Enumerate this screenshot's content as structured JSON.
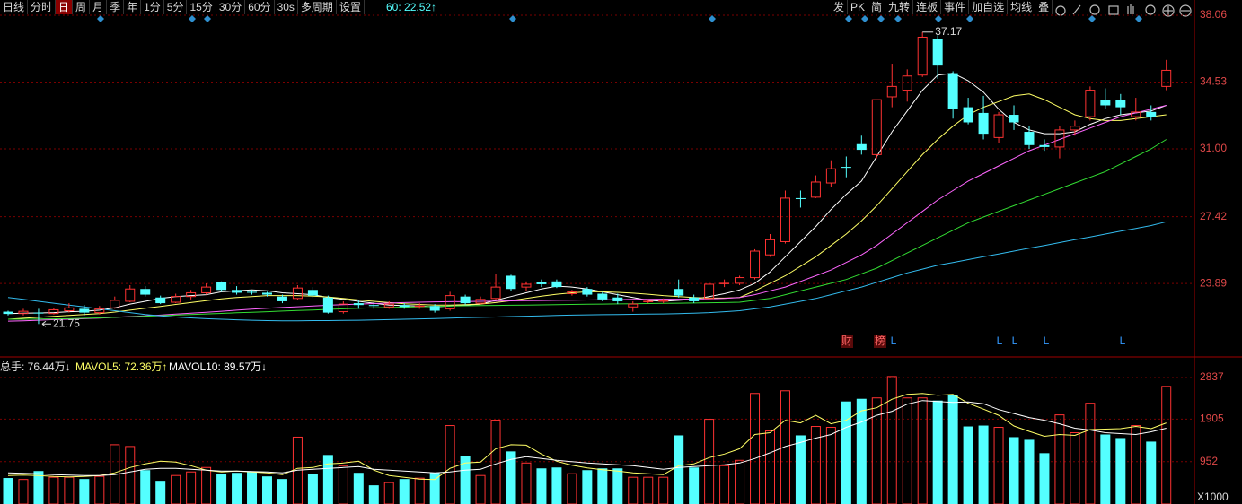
{
  "toolbar": {
    "left": [
      "日线",
      "分时",
      "日",
      "周",
      "月",
      "季",
      "年",
      "1分",
      "5分",
      "15分",
      "30分",
      "60分",
      "30s",
      "多周期",
      "设置"
    ],
    "ma_readout": "60: 22.52↑",
    "right": [
      "发",
      "PK",
      "简",
      "九转",
      "连板",
      "事件",
      "加自选",
      "均线",
      "叠"
    ]
  },
  "chart_data": [
    {
      "type": "candlestick",
      "up_color": "#ff3232",
      "down_color": "#54ffff",
      "ylim": [
        20.2,
        38.06
      ],
      "yticks": [
        38.06,
        34.53,
        {
          "value": 31,
          "label": "31.00"
        },
        27.42,
        23.89
      ],
      "grid": true,
      "high_label": "37.17",
      "low_label": "21.75",
      "events": [
        "财",
        "榜",
        "L",
        "L",
        "L",
        "L",
        "L"
      ],
      "open": [
        22.4,
        22.3,
        22.35,
        22.3,
        22.45,
        22.55,
        22.35,
        22.6,
        22.95,
        23.6,
        23.15,
        22.9,
        23.2,
        23.4,
        23.95,
        23.55,
        23.45,
        23.4,
        23.2,
        23.1,
        23.55,
        23.15,
        22.4,
        22.85,
        22.75,
        22.65,
        22.75,
        22.7,
        22.7,
        22.55,
        23.2,
        22.85,
        23.1,
        24.3,
        23.7,
        23.95,
        24.0,
        23.35,
        23.6,
        23.35,
        23.15,
        22.65,
        22.95,
        22.95,
        23.6,
        23.15,
        23.1,
        23.9,
        23.9,
        24.2,
        25.4,
        26.1,
        28.4,
        28.45,
        29.2,
        30.05,
        31.25,
        30.7,
        33.75,
        34.1,
        34.9,
        36.8,
        35.0,
        33.2,
        32.9,
        31.6,
        32.8,
        31.9,
        31.2,
        31.1,
        32.0,
        32.7,
        33.6,
        33.6,
        32.7,
        32.95,
        34.3
      ],
      "high": [
        22.45,
        22.55,
        22.55,
        22.6,
        22.85,
        22.75,
        22.7,
        23.2,
        23.8,
        23.75,
        23.25,
        23.35,
        23.55,
        23.9,
        24.0,
        23.75,
        23.55,
        23.45,
        23.3,
        23.8,
        23.7,
        23.25,
        22.95,
        23.0,
        22.9,
        22.95,
        22.85,
        22.85,
        22.8,
        23.45,
        23.3,
        23.2,
        24.4,
        24.35,
        24.0,
        24.1,
        24.1,
        23.55,
        23.7,
        23.45,
        23.35,
        22.95,
        23.05,
        23.1,
        24.1,
        23.3,
        24.0,
        24.1,
        24.3,
        25.7,
        26.5,
        28.8,
        28.8,
        29.6,
        30.4,
        30.6,
        31.7,
        33.6,
        35.5,
        35.2,
        37.17,
        37.0,
        35.1,
        33.7,
        33.8,
        32.95,
        33.3,
        32.2,
        31.5,
        32.2,
        32.5,
        34.3,
        34.2,
        33.9,
        33.7,
        33.3,
        35.7
      ],
      "low": [
        22.2,
        22.2,
        21.75,
        22.25,
        22.35,
        22.2,
        22.25,
        22.55,
        22.9,
        23.2,
        22.8,
        22.85,
        23.05,
        23.3,
        23.45,
        23.3,
        23.3,
        23.2,
        22.85,
        23.0,
        23.15,
        22.3,
        22.3,
        22.55,
        22.55,
        22.55,
        22.55,
        22.55,
        22.35,
        22.45,
        22.75,
        22.8,
        23.0,
        23.5,
        23.5,
        23.7,
        23.65,
        23.25,
        23.2,
        22.95,
        22.8,
        22.4,
        22.85,
        22.85,
        23.15,
        22.85,
        23.0,
        23.7,
        23.8,
        24.1,
        25.3,
        26.0,
        27.9,
        28.4,
        29.0,
        29.5,
        30.7,
        30.5,
        33.2,
        33.5,
        34.8,
        34.7,
        32.6,
        32.3,
        31.5,
        31.3,
        32.0,
        31.0,
        30.9,
        30.5,
        31.7,
        32.5,
        33.1,
        32.8,
        32.5,
        32.5,
        34.1
      ],
      "close": [
        22.28,
        22.42,
        22.3,
        22.5,
        22.6,
        22.35,
        22.55,
        23.0,
        23.6,
        23.3,
        22.85,
        23.2,
        23.4,
        23.7,
        23.55,
        23.4,
        23.4,
        23.3,
        22.95,
        23.65,
        23.25,
        22.35,
        22.8,
        22.75,
        22.7,
        22.8,
        22.65,
        22.7,
        22.45,
        23.25,
        22.85,
        23.05,
        23.7,
        23.6,
        23.85,
        23.85,
        23.7,
        23.45,
        23.3,
        23.05,
        22.95,
        22.8,
        22.95,
        23.0,
        23.25,
        22.95,
        23.85,
        23.9,
        24.2,
        25.6,
        26.2,
        28.4,
        28.35,
        29.25,
        29.95,
        30.0,
        30.95,
        33.6,
        34.3,
        34.85,
        36.9,
        35.4,
        33.1,
        32.4,
        31.8,
        32.8,
        32.4,
        31.2,
        31.1,
        32.0,
        32.2,
        34.1,
        33.3,
        33.2,
        32.95,
        32.7,
        35.15
      ],
      "series": [
        {
          "color": "#ffffff",
          "values": [
            22.3,
            22.32,
            22.33,
            22.35,
            22.4,
            22.42,
            22.48,
            22.6,
            22.8,
            22.95,
            23.1,
            23.2,
            23.25,
            23.3,
            23.45,
            23.5,
            23.55,
            23.5,
            23.4,
            23.35,
            23.3,
            23.15,
            23.05,
            22.95,
            22.85,
            22.75,
            22.72,
            22.7,
            22.65,
            22.7,
            22.75,
            22.8,
            23.0,
            23.2,
            23.4,
            23.6,
            23.75,
            23.7,
            23.6,
            23.45,
            23.3,
            23.15,
            23.0,
            22.95,
            23.0,
            23.05,
            23.2,
            23.35,
            23.55,
            23.9,
            24.5,
            25.3,
            26.1,
            26.9,
            27.8,
            28.6,
            29.3,
            30.6,
            31.9,
            33.0,
            34.1,
            34.9,
            35.0,
            34.6,
            34.0,
            33.1,
            32.4,
            32.0,
            31.8,
            31.8,
            31.9,
            32.3,
            32.6,
            32.8,
            32.9,
            33.0,
            33.3
          ]
        },
        {
          "color": "#ffff66",
          "values": [
            22.0,
            22.05,
            22.1,
            22.15,
            22.2,
            22.25,
            22.3,
            22.38,
            22.48,
            22.58,
            22.68,
            22.78,
            22.88,
            22.98,
            23.08,
            23.15,
            23.2,
            23.25,
            23.25,
            23.25,
            23.22,
            23.18,
            23.1,
            23.02,
            22.95,
            22.88,
            22.82,
            22.78,
            22.75,
            22.75,
            22.77,
            22.8,
            22.88,
            22.98,
            23.1,
            23.22,
            23.32,
            23.4,
            23.45,
            23.45,
            23.42,
            23.38,
            23.32,
            23.25,
            23.2,
            23.15,
            23.12,
            23.12,
            23.15,
            23.5,
            23.9,
            24.3,
            24.8,
            25.3,
            25.9,
            26.5,
            27.2,
            28.0,
            28.9,
            29.8,
            30.7,
            31.5,
            32.2,
            32.8,
            33.2,
            33.5,
            33.8,
            33.9,
            33.6,
            33.2,
            32.8,
            32.6,
            32.5,
            32.5,
            32.6,
            32.7,
            32.8
          ]
        },
        {
          "color": "#ff66ff",
          "values": [
            21.9,
            21.92,
            21.95,
            21.98,
            22.0,
            22.03,
            22.06,
            22.1,
            22.14,
            22.18,
            22.22,
            22.27,
            22.32,
            22.37,
            22.42,
            22.48,
            22.53,
            22.58,
            22.62,
            22.66,
            22.7,
            22.74,
            22.77,
            22.8,
            22.83,
            22.86,
            22.88,
            22.9,
            22.92,
            22.93,
            22.94,
            22.95,
            22.96,
            22.97,
            22.98,
            22.99,
            23.0,
            23.01,
            23.02,
            23.03,
            23.04,
            23.05,
            23.05,
            23.06,
            23.06,
            23.07,
            23.08,
            23.1,
            23.15,
            23.3,
            23.5,
            23.7,
            24.0,
            24.3,
            24.6,
            25.0,
            25.4,
            25.9,
            26.5,
            27.1,
            27.7,
            28.3,
            28.8,
            29.3,
            29.7,
            30.1,
            30.5,
            30.9,
            31.2,
            31.5,
            31.8,
            32.1,
            32.4,
            32.7,
            32.9,
            33.1,
            33.3
          ]
        },
        {
          "color": "#33dd33",
          "values": [
            22.0,
            22.0,
            22.01,
            22.02,
            22.03,
            22.05,
            22.07,
            22.1,
            22.13,
            22.16,
            22.19,
            22.22,
            22.25,
            22.28,
            22.31,
            22.34,
            22.37,
            22.4,
            22.43,
            22.46,
            22.49,
            22.52,
            22.55,
            22.58,
            22.6,
            22.62,
            22.64,
            22.66,
            22.68,
            22.7,
            22.71,
            22.72,
            22.73,
            22.74,
            22.75,
            22.76,
            22.77,
            22.78,
            22.79,
            22.8,
            22.81,
            22.82,
            22.83,
            22.84,
            22.85,
            22.86,
            22.87,
            22.88,
            22.9,
            23.0,
            23.1,
            23.3,
            23.5,
            23.7,
            23.9,
            24.1,
            24.4,
            24.7,
            25.1,
            25.5,
            25.9,
            26.3,
            26.7,
            27.1,
            27.4,
            27.7,
            28.0,
            28.3,
            28.6,
            28.9,
            29.2,
            29.5,
            29.8,
            30.2,
            30.6,
            31.0,
            31.5
          ]
        },
        {
          "color": "#33bbee",
          "values": [
            23.15,
            23.05,
            22.95,
            22.85,
            22.75,
            22.65,
            22.55,
            22.45,
            22.35,
            22.25,
            22.18,
            22.12,
            22.07,
            22.03,
            22.0,
            21.97,
            21.95,
            21.93,
            21.92,
            21.92,
            21.93,
            21.93,
            21.94,
            21.95,
            21.96,
            21.98,
            22.0,
            22.02,
            22.04,
            22.06,
            22.08,
            22.1,
            22.12,
            22.14,
            22.16,
            22.18,
            22.2,
            22.22,
            22.23,
            22.24,
            22.25,
            22.26,
            22.27,
            22.28,
            22.3,
            22.32,
            22.35,
            22.4,
            22.45,
            22.55,
            22.65,
            22.8,
            22.95,
            23.1,
            23.3,
            23.5,
            23.7,
            23.95,
            24.2,
            24.45,
            24.65,
            24.85,
            25.0,
            25.15,
            25.3,
            25.45,
            25.6,
            25.75,
            25.9,
            26.05,
            26.2,
            26.35,
            26.5,
            26.65,
            26.8,
            26.95,
            27.15
          ]
        }
      ]
    },
    {
      "type": "bar",
      "ylim": [
        0,
        3260
      ],
      "yticks": [
        2837,
        1905,
        952
      ],
      "unit_label": "X1000",
      "grid": true,
      "legend": [
        {
          "text": "总手: 76.44万↓",
          "color": "#e0e0e0"
        },
        {
          "text": "MAVOL5: 72.36万↑",
          "color": "#ffff66"
        },
        {
          "text": "MAVOL10: 89.57万↓",
          "color": "#ffffff"
        }
      ],
      "values": [
        583,
        550,
        740,
        600,
        600,
        560,
        620,
        1330,
        1290,
        760,
        520,
        640,
        720,
        820,
        680,
        700,
        720,
        620,
        560,
        1500,
        680,
        1100,
        860,
        700,
        420,
        480,
        560,
        580,
        700,
        1760,
        1080,
        640,
        1880,
        1180,
        920,
        800,
        820,
        680,
        760,
        800,
        800,
        600,
        600,
        600,
        1540,
        820,
        1900,
        860,
        980,
        2480,
        1640,
        2540,
        1540,
        1740,
        1720,
        2300,
        2360,
        2380,
        2860,
        2380,
        2380,
        2320,
        2440,
        1740,
        1760,
        1720,
        1500,
        1440,
        1140,
        2000,
        1600,
        2260,
        1560,
        1480,
        1760,
        1400,
        2640
      ],
      "series": [
        {
          "color": "#ffff66",
          "values": [
            640,
            650,
            640,
            620,
            610,
            620,
            640,
            700,
            820,
            900,
            960,
            940,
            860,
            760,
            720,
            740,
            720,
            700,
            660,
            800,
            820,
            900,
            920,
            960,
            760,
            640,
            600,
            560,
            550,
            800,
            920,
            940,
            1240,
            1330,
            1320,
            1120,
            960,
            870,
            810,
            770,
            740,
            700,
            680,
            660,
            860,
            900,
            1040,
            1120,
            1240,
            1560,
            1600,
            1880,
            1820,
            1990,
            1800,
            1880,
            2090,
            2160,
            2350,
            2460,
            2480,
            2440,
            2460,
            2260,
            2130,
            1990,
            1750,
            1630,
            1520,
            1560,
            1540,
            1670,
            1680,
            1690,
            1740,
            1690,
            1820
          ]
        },
        {
          "color": "#ffffff",
          "values": [
            700,
            690,
            680,
            660,
            650,
            640,
            640,
            660,
            720,
            780,
            800,
            800,
            780,
            760,
            740,
            740,
            730,
            720,
            700,
            760,
            780,
            800,
            820,
            840,
            780,
            760,
            740,
            720,
            700,
            720,
            760,
            780,
            900,
            1000,
            1060,
            1020,
            980,
            950,
            920,
            900,
            880,
            860,
            820,
            780,
            820,
            840,
            860,
            880,
            920,
            1020,
            1150,
            1290,
            1380,
            1480,
            1560,
            1720,
            1840,
            1990,
            2080,
            2240,
            2320,
            2300,
            2280,
            2290,
            2250,
            2120,
            2030,
            1940,
            1880,
            1800,
            1700,
            1660,
            1600,
            1580,
            1560,
            1620,
            1700
          ]
        }
      ]
    }
  ]
}
